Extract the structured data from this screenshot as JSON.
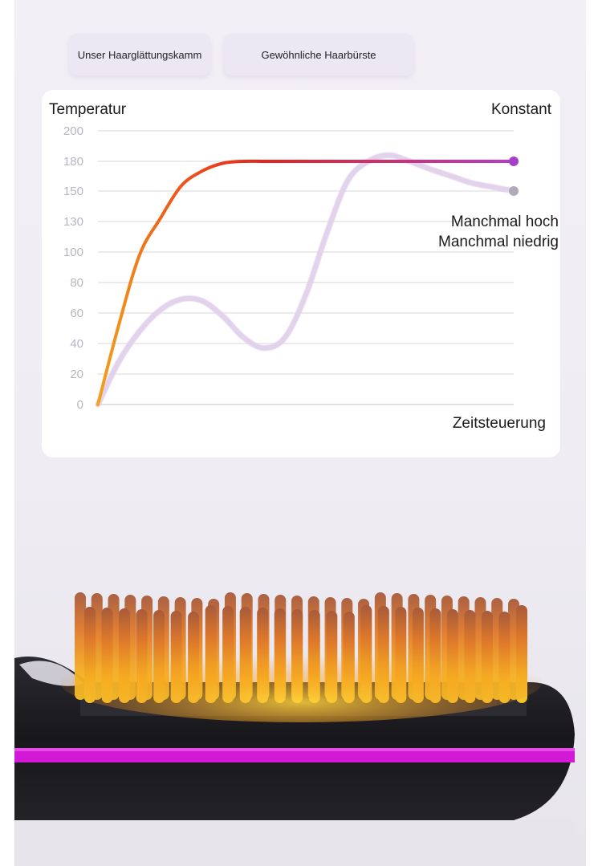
{
  "legend": {
    "ours_label": "Unser Haarglättungskamm",
    "normal_label": "Gewöhnliche Haarbürste"
  },
  "annotations": {
    "constant_label": "Konstant",
    "fluct_line1": "Manchmal hoch",
    "fluct_line2": "Manchmal niedrig"
  },
  "chart_data": {
    "type": "line",
    "ylabel": "Temperatur",
    "xlabel": "Zeitsteuerung",
    "y_ticks": [
      0,
      20,
      40,
      60,
      80,
      100,
      130,
      150,
      180,
      200
    ],
    "ylim": [
      0,
      200
    ],
    "grid": true,
    "x_ticks_shown": false,
    "x": [
      0,
      5,
      10,
      15,
      20,
      25,
      30,
      35,
      40,
      45,
      50,
      55,
      60,
      65,
      70,
      75,
      80,
      85,
      90,
      95,
      100
    ],
    "series": [
      {
        "name": "Unser Haarglättungskamm",
        "color": "#c92cc9",
        "gradient": [
          "#f2a21c",
          "#ee5a1c",
          "#e2251f",
          "#b93bc8"
        ],
        "values": [
          0,
          52,
          98,
          132,
          155,
          170,
          178,
          180,
          180,
          180,
          180,
          180,
          180,
          180,
          180,
          180,
          180,
          180,
          180,
          180,
          180
        ],
        "end_label": "Konstant"
      },
      {
        "name": "Gewöhnliche Haarbürste",
        "color": "#e2d2ec",
        "values": [
          0,
          28,
          48,
          62,
          69,
          68,
          58,
          44,
          37,
          44,
          72,
          118,
          160,
          180,
          184,
          180,
          172,
          165,
          158,
          154,
          150
        ],
        "end_label": "Manchmal hoch / Manchmal niedrig"
      }
    ]
  },
  "colors": {
    "background": "#efecf3",
    "accent_magenta": "#c92cc9",
    "device_body": "#1b1a1f",
    "device_stripe": "#d21ad6",
    "bristle_hot": "#f0a020"
  }
}
